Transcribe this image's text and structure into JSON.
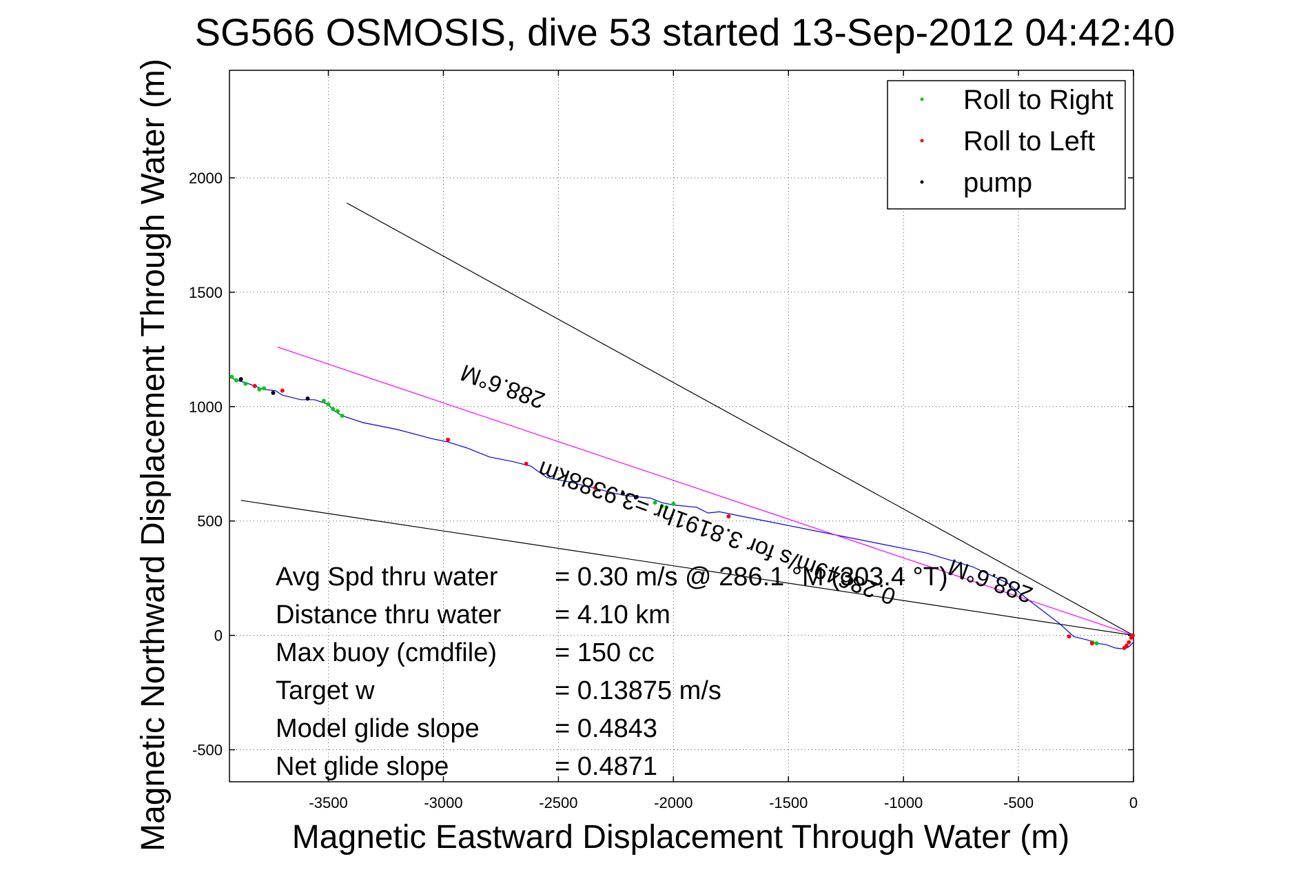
{
  "chart_data": {
    "type": "line",
    "title": "SG566 OSMOSIS, dive 53 started 13-Sep-2012 04:42:40",
    "xlabel": "Magnetic Eastward Displacement Through Water (m)",
    "ylabel": "Magnetic Northward Displacement Through Water (m)",
    "xlim": [
      -3930,
      0
    ],
    "ylim": [
      -640,
      2470
    ],
    "x_ticks": [
      -3500,
      -3000,
      -2500,
      -2000,
      -1500,
      -1000,
      -500,
      0
    ],
    "y_ticks": [
      -500,
      0,
      500,
      1000,
      1500,
      2000
    ],
    "grid": true,
    "legend_position": "top-right",
    "legend": [
      {
        "label": "Roll to Right",
        "color": "#00cc00"
      },
      {
        "label": "Roll to Left",
        "color": "#ff0000"
      },
      {
        "label": "pump",
        "color": "#000000"
      }
    ],
    "series": [
      {
        "color": "#0000ff",
        "x": [
          0,
          -20,
          -40,
          -80,
          -120,
          -160,
          -200,
          -260,
          -320,
          -450,
          -550,
          -700,
          -900,
          -1100,
          -1300,
          -1500,
          -1700,
          -1800,
          -1850,
          -1900,
          -2000,
          -2050,
          -2100,
          -2200,
          -2250,
          -2330,
          -2450,
          -2550,
          -2620,
          -2700,
          -2800,
          -2900,
          -2980,
          -3050,
          -3200,
          -3350,
          -3440,
          -3480,
          -3500,
          -3560,
          -3620,
          -3700,
          -3730,
          -3780,
          -3820,
          -3860,
          -3900,
          -3930
        ],
        "y": [
          -30,
          -50,
          -60,
          -55,
          -40,
          -35,
          -20,
          -5,
          50,
          150,
          230,
          300,
          360,
          400,
          440,
          480,
          520,
          540,
          535,
          560,
          570,
          580,
          600,
          610,
          620,
          640,
          670,
          690,
          740,
          760,
          780,
          820,
          845,
          860,
          900,
          930,
          960,
          985,
          1010,
          1030,
          1030,
          1050,
          1070,
          1075,
          1090,
          1105,
          1115,
          1130
        ]
      },
      {
        "name": "Roll to Right",
        "color": "#00cc00",
        "x": [
          -2080,
          -2050,
          -2030,
          -2000,
          -3440,
          -3460,
          -3480,
          -3500,
          -3520,
          -3860,
          -3900,
          -3920,
          -3780,
          -3800,
          -160,
          -180
        ],
        "y": [
          580,
          565,
          560,
          575,
          960,
          980,
          990,
          1010,
          1025,
          1100,
          1115,
          1130,
          1080,
          1075,
          -35,
          -30
        ]
      },
      {
        "name": "Roll to Left",
        "color": "#ff0000",
        "x": [
          -2980,
          -2640,
          -2340,
          -1760,
          -10,
          -20,
          -30,
          -40,
          -5,
          -3,
          -280,
          -180,
          -3820,
          -3700
        ],
        "y": [
          855,
          750,
          645,
          520,
          -10,
          -30,
          -45,
          -55,
          -5,
          0,
          -5,
          -35,
          1090,
          1070
        ]
      },
      {
        "name": "pump",
        "color": "#000000",
        "x": [
          -2220,
          -2160,
          -3590,
          -3880,
          -3740
        ],
        "y": [
          620,
          605,
          1035,
          1120,
          1060
        ]
      },
      {
        "color": "#000000",
        "x": [
          0,
          -3420
        ],
        "y": [
          0,
          1890
        ]
      },
      {
        "color": "#000000",
        "x": [
          0,
          -3880
        ],
        "y": [
          0,
          590
        ]
      },
      {
        "color": "#ff00ff",
        "x": [
          0,
          -3720
        ],
        "y": [
          0,
          1260
        ]
      }
    ],
    "annotations": [
      {
        "text": "288.6°M",
        "x": -2730,
        "y": 1120,
        "rotation_deg": 200
      },
      {
        "text": "0.28649m/s for 3.8191hr =3.9388km",
        "x": -1800,
        "y": 480,
        "rotation_deg": 200
      },
      {
        "text": "288.6°M",
        "x": -610,
        "y": 270,
        "rotation_deg": 200
      }
    ],
    "stats": [
      {
        "label": "Avg Spd thru water",
        "value": "=  0.30 m/s @ 286.1 °M (303.4 °T)"
      },
      {
        "label": "Distance thru water",
        "value": "=  4.10 km"
      },
      {
        "label": "Max buoy (cmdfile)",
        "value": "= 150 cc"
      },
      {
        "label": "Target w",
        "value": "= 0.13875 m/s"
      },
      {
        "label": "Model glide slope",
        "value": "= 0.4843"
      },
      {
        "label": "Net glide slope",
        "value": "= 0.4871"
      }
    ]
  }
}
